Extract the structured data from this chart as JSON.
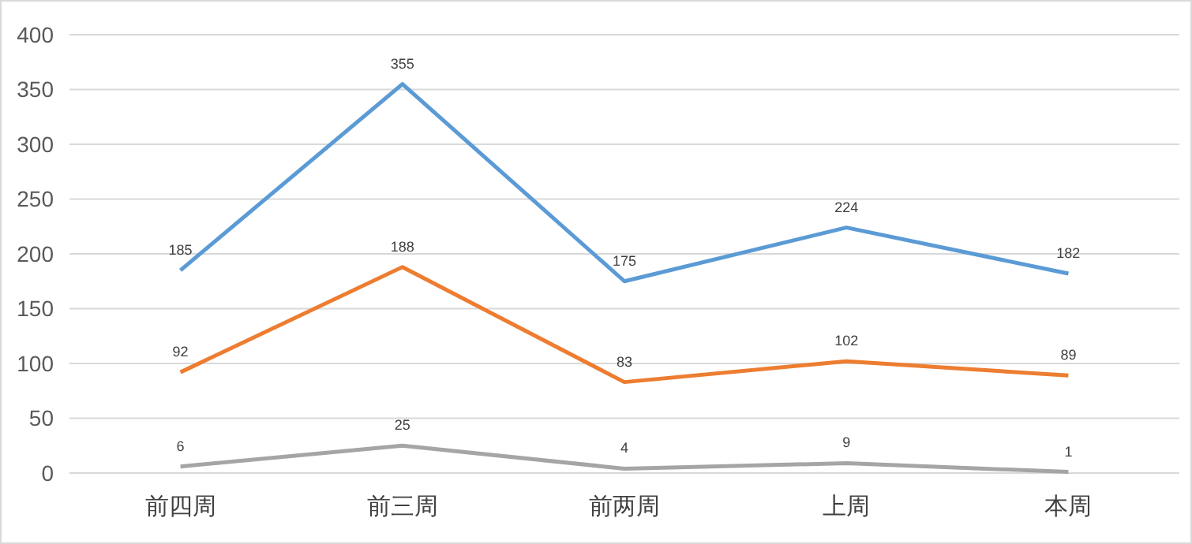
{
  "chart_data": {
    "type": "line",
    "categories": [
      "前四周",
      "前三周",
      "前两周",
      "上周",
      "本周"
    ],
    "series": [
      {
        "color": "#5b9bd5",
        "values": [
          185,
          355,
          175,
          224,
          182
        ]
      },
      {
        "color": "#ed7d31",
        "values": [
          92,
          188,
          83,
          102,
          89
        ]
      },
      {
        "color": "#a5a5a5",
        "values": [
          6,
          25,
          4,
          9,
          1
        ]
      }
    ],
    "ylim": [
      0,
      400
    ],
    "yticks": [
      0,
      50,
      100,
      150,
      200,
      250,
      300,
      350,
      400
    ],
    "grid": "y",
    "data_labels": true,
    "marker": "none",
    "line_style": "solid"
  }
}
